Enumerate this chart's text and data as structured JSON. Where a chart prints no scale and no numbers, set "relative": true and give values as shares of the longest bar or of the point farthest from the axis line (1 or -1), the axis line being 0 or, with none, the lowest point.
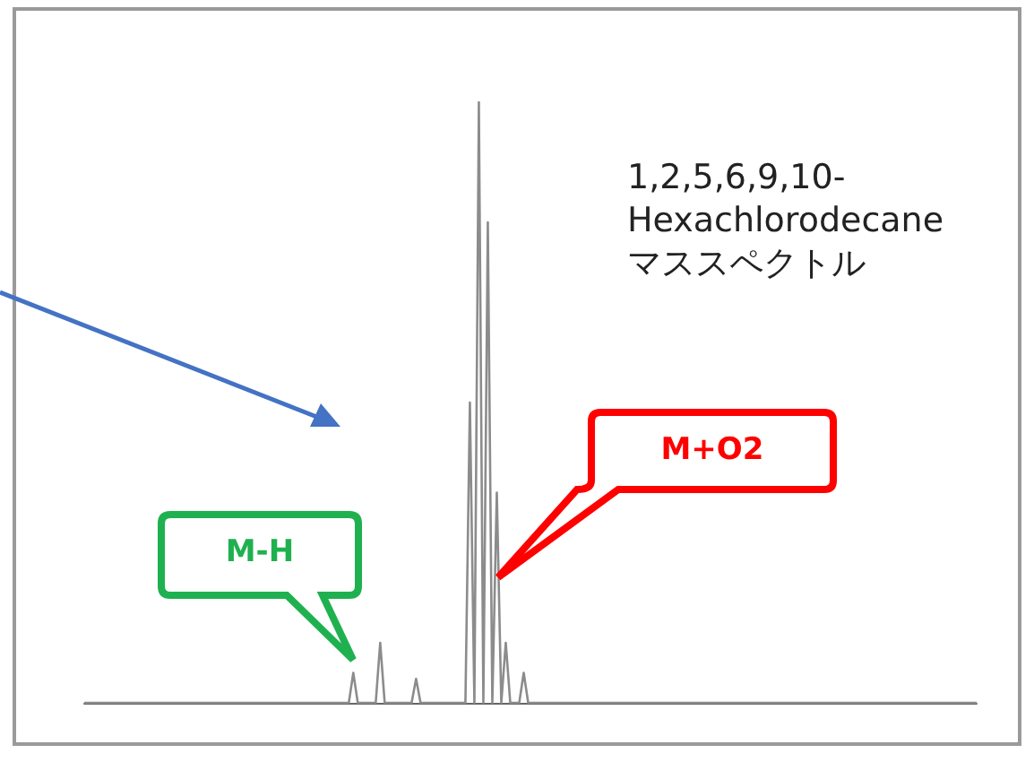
{
  "chart_data": {
    "type": "line",
    "relative": true,
    "title": "1,2,5,6,9,10-\nHexachlorodecane\nマススペクトル",
    "annotations": [
      "M-H",
      "M+O2"
    ],
    "color": "#8c8c8c",
    "marker": "none",
    "categories": [
      null,
      null,
      null,
      null,
      null,
      null,
      null,
      null,
      null,
      null,
      null,
      null,
      null,
      null,
      null,
      null,
      null,
      null,
      null,
      null,
      null,
      null,
      null,
      null,
      null,
      null,
      null,
      null,
      null,
      null,
      null,
      null,
      null,
      null,
      null,
      null,
      null,
      null,
      null,
      null,
      null,
      null,
      null,
      null,
      null,
      null,
      null,
      null,
      null,
      null,
      null,
      null,
      null,
      null,
      null,
      null,
      null,
      null,
      null,
      null,
      null,
      null,
      null,
      null,
      null,
      null,
      null,
      null,
      null,
      null,
      null,
      null,
      null,
      null,
      null,
      null,
      null,
      null,
      null,
      null,
      null,
      null,
      null,
      null,
      null,
      null,
      null,
      null,
      null,
      null,
      null,
      null,
      null,
      null,
      null,
      null,
      null,
      null,
      null,
      null,
      null,
      null,
      null,
      null,
      null,
      null,
      null,
      null,
      null,
      null,
      null,
      null,
      null,
      null,
      null,
      null,
      null,
      null,
      null,
      null,
      null,
      null,
      null,
      null,
      null,
      null,
      null,
      null,
      null,
      null,
      null,
      null,
      null,
      null,
      null,
      null,
      null,
      null,
      null,
      null,
      null,
      null,
      null,
      null,
      null,
      null,
      null,
      null,
      null,
      null,
      null,
      null,
      null,
      null,
      null,
      null,
      null,
      null,
      null,
      null,
      null,
      null,
      null,
      null,
      null,
      null,
      null,
      null,
      null,
      null,
      null,
      null,
      null,
      null,
      null,
      null,
      null,
      null,
      null,
      null,
      null,
      null,
      null,
      null,
      null,
      null,
      null,
      null,
      null,
      null,
      null,
      null,
      null,
      null,
      null,
      null,
      null,
      null,
      null,
      null
    ],
    "values": [
      0,
      0,
      0,
      0,
      0,
      0,
      0,
      0,
      0,
      0,
      0,
      0,
      0,
      0,
      0,
      0,
      0,
      0,
      0,
      0,
      0,
      0,
      0,
      0,
      0,
      0,
      0,
      0,
      0,
      0,
      0,
      0,
      0,
      0,
      0,
      0,
      0,
      0,
      0,
      0,
      0,
      0,
      0,
      0,
      0,
      0,
      0,
      0,
      0,
      0,
      0,
      0,
      0,
      0,
      0,
      0,
      0,
      0,
      0,
      0,
      0.05,
      0,
      0,
      0,
      0,
      0,
      0.1,
      0,
      0,
      0,
      0,
      0,
      0,
      0,
      0.04,
      0,
      0,
      0,
      0,
      0,
      0,
      0,
      0,
      0,
      0,
      0,
      0.5,
      0,
      1,
      0,
      0.8,
      0,
      0.35,
      0,
      0.1,
      0,
      0,
      0,
      0.05,
      0,
      0,
      0,
      0,
      0,
      0,
      0,
      0,
      0,
      0,
      0,
      0,
      0,
      0,
      0,
      0,
      0,
      0,
      0,
      0,
      0,
      0,
      0,
      0,
      0,
      0,
      0,
      0,
      0,
      0,
      0,
      0,
      0,
      0,
      0,
      0,
      0,
      0,
      0,
      0,
      0,
      0,
      0,
      0,
      0,
      0,
      0,
      0,
      0,
      0,
      0,
      0,
      0,
      0,
      0,
      0,
      0,
      0,
      0,
      0,
      0,
      0,
      0,
      0,
      0,
      0,
      0,
      0,
      0,
      0,
      0,
      0,
      0,
      0,
      0,
      0,
      0,
      0,
      0,
      0,
      0,
      0,
      0,
      0,
      0,
      0,
      0,
      0,
      0,
      0,
      0,
      0,
      0,
      0,
      0,
      0,
      0,
      0,
      0,
      0,
      0
    ]
  }
}
